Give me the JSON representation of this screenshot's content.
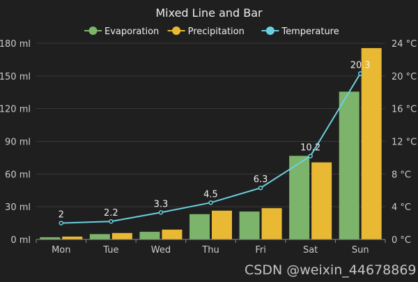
{
  "chart_data": {
    "type": "bar+line",
    "title": "Mixed Line and Bar",
    "categories": [
      "Mon",
      "Tue",
      "Wed",
      "Thu",
      "Fri",
      "Sat",
      "Sun"
    ],
    "series": [
      {
        "name": "Evaporation",
        "type": "bar",
        "axis": "left",
        "color": "#7cb46b",
        "values": [
          2.0,
          4.9,
          7.0,
          23.2,
          25.6,
          76.7,
          135.6
        ]
      },
      {
        "name": "Precipitation",
        "type": "bar",
        "axis": "left",
        "color": "#e9b934",
        "values": [
          2.6,
          5.9,
          9.0,
          26.4,
          28.7,
          70.7,
          175.6
        ]
      },
      {
        "name": "Temperature",
        "type": "line",
        "axis": "right",
        "color": "#6bd0e0",
        "values": [
          2.0,
          2.2,
          3.3,
          4.5,
          6.3,
          10.2,
          20.3
        ],
        "labels": [
          "2",
          "2.2",
          "3.3",
          "4.5",
          "6.3",
          "10.2",
          "20.3"
        ]
      }
    ],
    "left_axis": {
      "range": [
        0,
        180
      ],
      "ticks": [
        "0 ml",
        "30 ml",
        "60 ml",
        "90 ml",
        "120 ml",
        "150 ml",
        "180 ml"
      ]
    },
    "right_axis": {
      "range": [
        0,
        24
      ],
      "ticks": [
        "0 °C",
        "4 °C",
        "8 °C",
        "12 °C",
        "16 °C",
        "20 °C",
        "24 °C"
      ]
    },
    "grid": true,
    "legend": "top-center"
  },
  "watermark": "CSDN @weixin_44678869"
}
